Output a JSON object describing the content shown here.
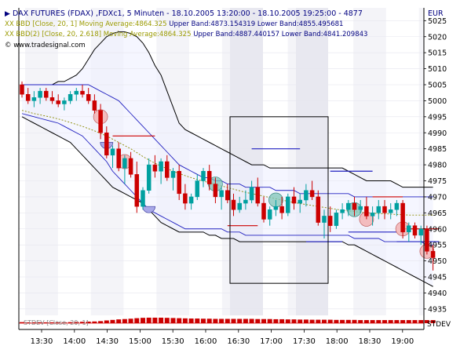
{
  "header": {
    "title": "DAX FUTURES (FDAX) ,FDXc1, 5 Minuten - 18.10.2005 13:20:00 - 18.10.2005 19:25:00 - 4877",
    "currency": "EUR",
    "bbd1_prefix": "XX BBD [Close, 20, 1] Moving Average:4864.325",
    "bbd1_bands": "Upper Band:4873.154319 Lower Band:4855.495681",
    "bbd2_prefix": "XX BBD(2) [Close, 20, 2.618] Moving Average:4864.325",
    "bbd2_bands": "Upper Band:4887.440157 Lower Band:4841.209843",
    "watermark": "© www.tradesignal.com"
  },
  "colors": {
    "title": "#000080",
    "bbd1": "#9a9a00",
    "bands": "#000080",
    "up": "#00a0a0",
    "down": "#cc0000",
    "outer_band": "#000000",
    "inner_band": "#2020c0",
    "ma": "#8a8a00",
    "stdev": "#cc0000"
  },
  "chart_data": {
    "type": "candlestick",
    "x_ticks": [
      "13:30",
      "14:00",
      "14:30",
      "15:00",
      "15:30",
      "16:00",
      "16:30",
      "17:00",
      "17:30",
      "18:00",
      "18:30",
      "19:00"
    ],
    "y_ticks": [
      4935,
      4940,
      4945,
      4950,
      4955,
      4960,
      4965,
      4970,
      4975,
      4980,
      4985,
      4990,
      4995,
      5000,
      5005,
      5010,
      5015,
      5020,
      5025
    ],
    "ylim": [
      4933,
      5029
    ],
    "stdev_label": "STDEV",
    "stdev_text": "STDEV [Close, 20, 1]",
    "candles": [
      [
        5005,
        5006,
        5001,
        5002
      ],
      [
        5002,
        5004,
        4999,
        5000
      ],
      [
        5000,
        5003,
        4998,
        5001
      ],
      [
        5001,
        5004,
        4999,
        5003
      ],
      [
        5003,
        5004,
        5000,
        5001
      ],
      [
        5001,
        5003,
        4999,
        5000
      ],
      [
        5000,
        5002,
        4998,
        4999
      ],
      [
        4999,
        5001,
        4997,
        5000
      ],
      [
        5000,
        5003,
        4999,
        5002
      ],
      [
        5002,
        5004,
        5000,
        5003
      ],
      [
        5003,
        5005,
        5001,
        5002
      ],
      [
        5002,
        5004,
        4999,
        5000
      ],
      [
        5000,
        5002,
        4996,
        4997
      ],
      [
        4997,
        4999,
        4988,
        4990
      ],
      [
        4990,
        4992,
        4982,
        4983
      ],
      [
        4983,
        4986,
        4979,
        4985
      ],
      [
        4985,
        4987,
        4978,
        4979
      ],
      [
        4979,
        4983,
        4974,
        4982
      ],
      [
        4982,
        4984,
        4976,
        4977
      ],
      [
        4977,
        4981,
        4965,
        4967
      ],
      [
        4967,
        4973,
        4966,
        4972
      ],
      [
        4972,
        4982,
        4971,
        4980
      ],
      [
        4980,
        4983,
        4976,
        4978
      ],
      [
        4978,
        4982,
        4974,
        4981
      ],
      [
        4981,
        4983,
        4975,
        4976
      ],
      [
        4976,
        4979,
        4972,
        4978
      ],
      [
        4978,
        4980,
        4969,
        4971
      ],
      [
        4971,
        4974,
        4966,
        4968
      ],
      [
        4968,
        4971,
        4966,
        4970
      ],
      [
        4970,
        4977,
        4969,
        4975
      ],
      [
        4975,
        4979,
        4973,
        4978
      ],
      [
        4978,
        4980,
        4972,
        4974
      ],
      [
        4974,
        4976,
        4968,
        4970
      ],
      [
        4970,
        4973,
        4966,
        4972
      ],
      [
        4972,
        4974,
        4968,
        4969
      ],
      [
        4969,
        4971,
        4964,
        4966
      ],
      [
        4966,
        4970,
        4965,
        4968
      ],
      [
        4968,
        4972,
        4966,
        4969
      ],
      [
        4969,
        4975,
        4968,
        4973
      ],
      [
        4973,
        4976,
        4967,
        4968
      ],
      [
        4968,
        4970,
        4962,
        4963
      ],
      [
        4963,
        4967,
        4961,
        4966
      ],
      [
        4966,
        4969,
        4964,
        4967
      ],
      [
        4967,
        4970,
        4963,
        4965
      ],
      [
        4965,
        4971,
        4964,
        4970
      ],
      [
        4970,
        4973,
        4966,
        4968
      ],
      [
        4968,
        4971,
        4965,
        4969
      ],
      [
        4969,
        4974,
        4967,
        4972
      ],
      [
        4972,
        4975,
        4969,
        4970
      ],
      [
        4970,
        4972,
        4961,
        4962
      ],
      [
        4962,
        4966,
        4957,
        4964
      ],
      [
        4964,
        4967,
        4959,
        4961
      ],
      [
        4961,
        4966,
        4960,
        4965
      ],
      [
        4965,
        4968,
        4963,
        4966
      ],
      [
        4966,
        4969,
        4964,
        4968
      ],
      [
        4968,
        4970,
        4964,
        4966
      ],
      [
        4966,
        4969,
        4965,
        4967
      ],
      [
        4967,
        4970,
        4963,
        4964
      ],
      [
        4964,
        4967,
        4961,
        4965
      ],
      [
        4965,
        4969,
        4963,
        4967
      ],
      [
        4967,
        4969,
        4963,
        4965
      ],
      [
        4965,
        4968,
        4963,
        4966
      ],
      [
        4966,
        4969,
        4964,
        4968
      ],
      [
        4968,
        4969,
        4957,
        4959
      ],
      [
        4959,
        4962,
        4956,
        4961
      ],
      [
        4961,
        4962,
        4957,
        4958
      ],
      [
        4958,
        4961,
        4955,
        4960
      ],
      [
        4960,
        4961,
        4952,
        4953
      ],
      [
        4953,
        4955,
        4947,
        4951
      ]
    ],
    "ma": [
      4997,
      4996.5,
      4996,
      4995.6,
      4995.2,
      4994.8,
      4994.3,
      4993.8,
      4993.2,
      4992.6,
      4992,
      4991.3,
      4990.6,
      4989.8,
      4989,
      4988,
      4987,
      4986,
      4985,
      4983.8,
      4982.6,
      4981.5,
      4980.5,
      4979.6,
      4978.8,
      4978,
      4977.3,
      4976.6,
      4976,
      4975.4,
      4974.9,
      4974.4,
      4973.9,
      4973.4,
      4972.9,
      4972.4,
      4971.9,
      4971.4,
      4971,
      4970.6,
      4970.2,
      4969.8,
      4969.4,
      4969,
      4968.6,
      4968.2,
      4967.9,
      4967.6,
      4967.3,
      4967,
      4966.7,
      4966.4,
      4966.1,
      4965.8,
      4965.6,
      4965.4,
      4965.2,
      4965,
      4964.9,
      4964.8,
      4964.7,
      4964.6,
      4964.5,
      4964.4,
      4964.3,
      4964.3,
      4964.3,
      4964.3,
      4964.3
    ],
    "bb2_upper": [
      5005,
      5005,
      5005,
      5005,
      5005,
      5005,
      5006,
      5006,
      5007,
      5008,
      5010,
      5013,
      5016,
      5018,
      5020,
      5021,
      5021.5,
      5021.5,
      5021,
      5020,
      5018,
      5015,
      5011,
      5008,
      5003,
      4998,
      4993,
      4991,
      4990,
      4989,
      4988,
      4987,
      4986,
      4985,
      4984,
      4983,
      4982,
      4981,
      4980,
      4980,
      4980,
      4979,
      4979,
      4979,
      4979,
      4979,
      4979,
      4979,
      4979,
      4979,
      4979,
      4979,
      4979,
      4979,
      4978,
      4977,
      4976,
      4975,
      4975,
      4975,
      4975,
      4975,
      4974,
      4973,
      4973,
      4973,
      4973,
      4973,
      4973
    ],
    "bb2_lower": [
      4995,
      4994,
      4993,
      4992,
      4991,
      4990,
      4989,
      4988,
      4987,
      4985,
      4983,
      4981,
      4979,
      4977,
      4975,
      4973,
      4972,
      4971,
      4970,
      4969,
      4968,
      4966,
      4964,
      4962,
      4961,
      4960,
      4959,
      4959,
      4959,
      4959,
      4959,
      4958,
      4958,
      4957,
      4957,
      4957,
      4956,
      4956,
      4956,
      4956,
      4956,
      4956,
      4956,
      4956,
      4956,
      4956,
      4956,
      4956,
      4956,
      4956,
      4956,
      4956,
      4956,
      4956,
      4955,
      4955,
      4954,
      4953,
      4952,
      4951,
      4950,
      4949,
      4948,
      4947,
      4946,
      4945,
      4944,
      4943,
      4942
    ],
    "bb1_upper": [
      5005,
      5005,
      5005,
      5005,
      5005,
      5005,
      5005,
      5005,
      5005,
      5005,
      5005,
      5005,
      5004,
      5003,
      5002,
      5001,
      5000,
      4998,
      4996,
      4994,
      4992,
      4990,
      4988,
      4986,
      4984,
      4982,
      4980,
      4979,
      4978,
      4977,
      4976,
      4976,
      4975,
      4975,
      4974,
      4974,
      4974,
      4973,
      4973,
      4973,
      4973,
      4973,
      4972,
      4972,
      4972,
      4972,
      4971,
      4971,
      4971,
      4971,
      4971,
      4971,
      4971,
      4971,
      4971,
      4970,
      4970,
      4970,
      4970,
      4970,
      4970,
      4970,
      4970,
      4970,
      4970,
      4970,
      4970,
      4970,
      4970
    ],
    "bb1_lower": [
      4996,
      4995.5,
      4995,
      4994.5,
      4994,
      4993.5,
      4993,
      4992,
      4991,
      4990,
      4989,
      4987,
      4985,
      4983,
      4981,
      4978,
      4976,
      4974,
      4972,
      4970,
      4968,
      4966,
      4965,
      4964,
      4963,
      4962,
      4961,
      4960,
      4960,
      4960,
      4960,
      4960,
      4960,
      4960,
      4959,
      4959,
      4959,
      4958,
      4958,
      4958,
      4958,
      4958,
      4958,
      4958,
      4958,
      4958,
      4958,
      4958,
      4958,
      4958,
      4958,
      4958,
      4958,
      4958,
      4958,
      4957,
      4957,
      4957,
      4957,
      4957,
      4956,
      4956,
      4956,
      4956,
      4956,
      4956,
      4956,
      4955,
      4955
    ],
    "stdev": [
      0.6,
      0.5,
      0.5,
      0.5,
      0.5,
      0.5,
      0.5,
      0.5,
      0.6,
      0.7,
      0.8,
      0.9,
      1.0,
      1.2,
      1.6,
      1.9,
      2.2,
      2.4,
      2.6,
      2.9,
      3.1,
      3.2,
      3.2,
      3.2,
      3.1,
      3.0,
      2.9,
      2.8,
      2.7,
      2.7,
      2.6,
      2.6,
      2.5,
      2.5,
      2.5,
      2.5,
      2.5,
      2.5,
      2.5,
      2.4,
      2.4,
      2.4,
      2.3,
      2.3,
      2.2,
      2.2,
      2.1,
      2.1,
      2.0,
      2.0,
      2.0,
      2.0,
      1.9,
      1.9,
      1.9,
      1.9,
      1.8,
      1.8,
      1.8,
      1.8,
      1.8,
      1.8,
      1.8,
      1.8,
      1.8,
      1.8,
      1.8,
      1.8,
      1.8
    ],
    "circles": [
      {
        "i": 13,
        "price": 4995,
        "color": "down"
      },
      {
        "i": 17,
        "price": 4981,
        "color": "down"
      },
      {
        "i": 32,
        "price": 4974,
        "color": "up"
      },
      {
        "i": 42,
        "price": 4969,
        "color": "up"
      },
      {
        "i": 55,
        "price": 4966,
        "color": "up"
      },
      {
        "i": 57,
        "price": 4963,
        "color": "down"
      },
      {
        "i": 63,
        "price": 4960,
        "color": "down"
      },
      {
        "i": 67,
        "price": 4953,
        "color": "down"
      }
    ],
    "halfcircles": [
      {
        "i": 14,
        "price": 4987
      },
      {
        "i": 21,
        "price": 4967
      }
    ],
    "ref_lines": [
      {
        "from": 15,
        "to": 22,
        "price": 4989,
        "color": "down"
      },
      {
        "from": 34,
        "to": 39,
        "price": 4961,
        "color": "down"
      },
      {
        "from": 58,
        "to": 63,
        "price": 4970,
        "color": "down"
      },
      {
        "from": 63,
        "to": 69,
        "price": 4960,
        "color": "down"
      },
      {
        "from": 38,
        "to": 46,
        "price": 4985,
        "color": "inner_band"
      },
      {
        "from": 47,
        "to": 53,
        "price": 4956,
        "color": "inner_band"
      },
      {
        "from": 51,
        "to": 58,
        "price": 4978,
        "color": "inner_band"
      },
      {
        "from": 54,
        "to": 62,
        "price": 4959,
        "color": "inner_band"
      },
      {
        "from": 62,
        "to": 69,
        "price": 4956,
        "color": "inner_band"
      }
    ],
    "box": {
      "from_x": 293,
      "to_x": 418,
      "top_price": 4995,
      "bottom_price": 4943
    }
  }
}
